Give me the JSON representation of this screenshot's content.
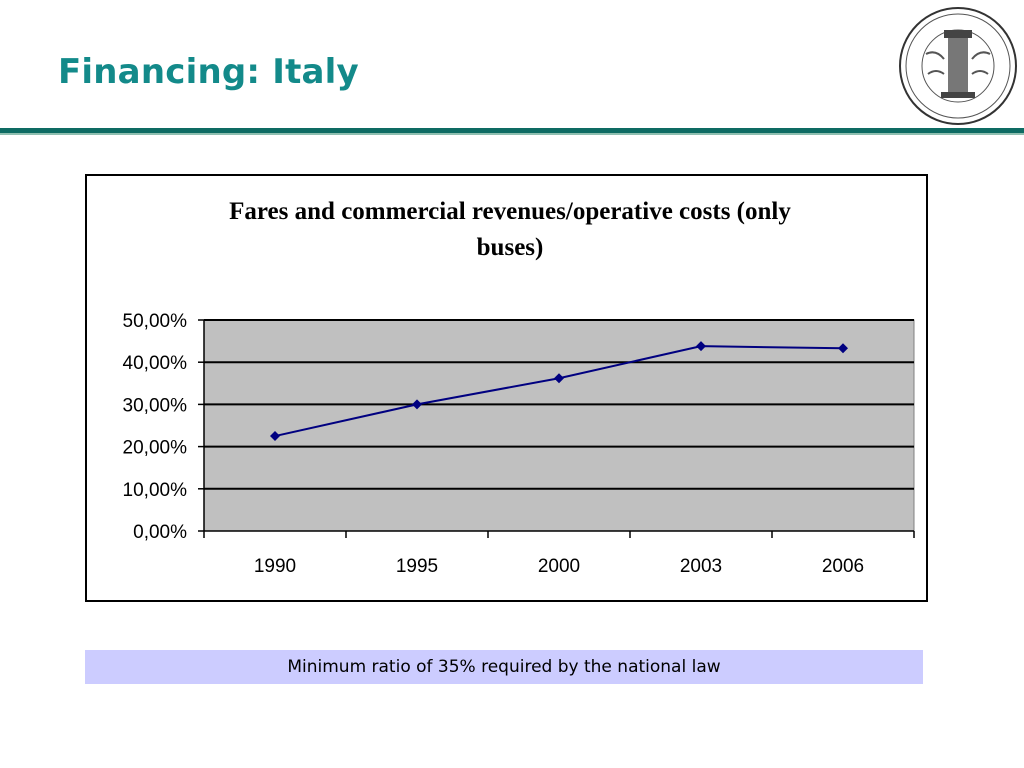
{
  "slide": {
    "title": "Financing: Italy",
    "note": "Minimum ratio of 35% required by the national law"
  },
  "logo": {
    "icon": "university-seal-icon"
  },
  "colors": {
    "title": "#138a8a",
    "rule": "#0e6b63",
    "plot_bg": "#c0c0c0",
    "series": "#000080",
    "note_bg": "#ccccff"
  },
  "chart_data": {
    "type": "line",
    "title": "Fares and commercial revenues/operative costs (only buses)",
    "title_lines": [
      "Fares and commercial revenues/operative costs (only",
      "buses)"
    ],
    "categories": [
      "1990",
      "1995",
      "2000",
      "2003",
      "2006"
    ],
    "values": [
      0.225,
      0.3,
      0.362,
      0.438,
      0.433
    ],
    "ylim": [
      0,
      0.5
    ],
    "yticks": [
      0,
      0.1,
      0.2,
      0.3,
      0.4,
      0.5
    ],
    "ytick_labels": [
      "0,00%",
      "10,00%",
      "20,00%",
      "30,00%",
      "40,00%",
      "50,00%"
    ],
    "grid": true,
    "legend": "none",
    "marker": "diamond"
  }
}
